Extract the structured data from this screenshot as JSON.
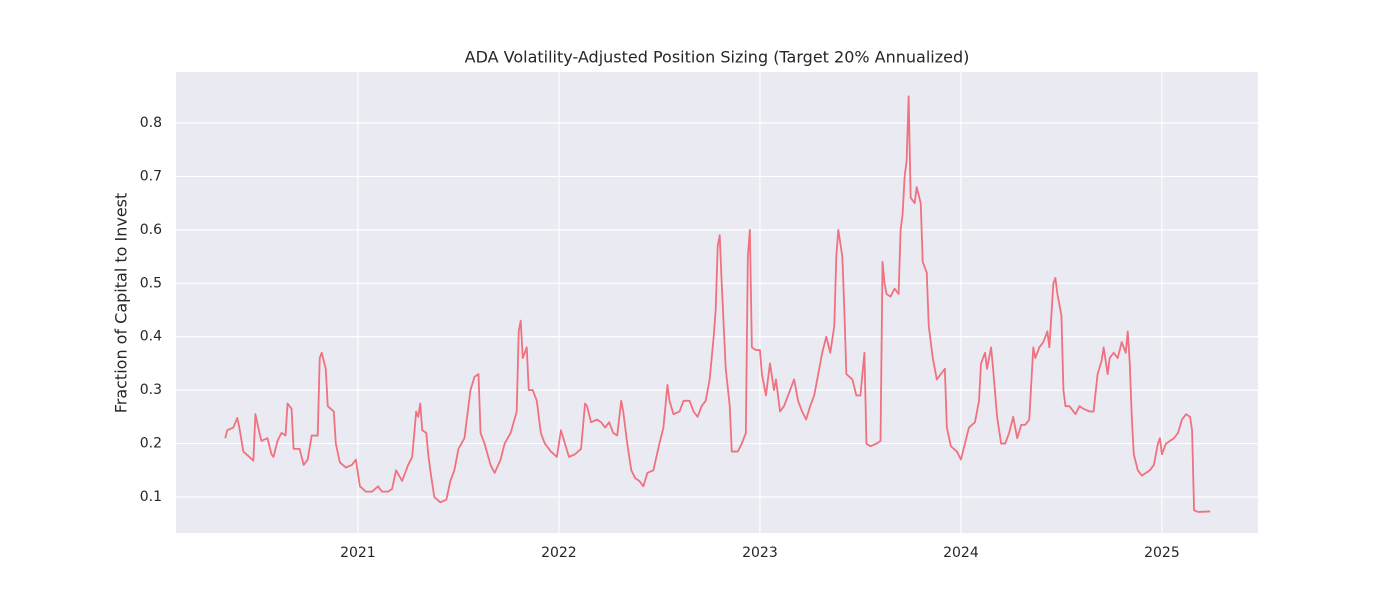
{
  "chart_data": {
    "type": "line",
    "title": "ADA Volatility-Adjusted Position Sizing (Target 20% Annualized)",
    "ylabel": "Fraction of Capital to Invest",
    "x": [
      2020.34,
      2020.35,
      2020.38,
      2020.4,
      2020.41,
      2020.43,
      2020.46,
      2020.48,
      2020.49,
      2020.51,
      2020.52,
      2020.55,
      2020.57,
      2020.58,
      2020.6,
      2020.62,
      2020.64,
      2020.65,
      2020.67,
      2020.68,
      2020.71,
      2020.73,
      2020.75,
      2020.77,
      2020.8,
      2020.81,
      2020.82,
      2020.84,
      2020.85,
      2020.88,
      2020.89,
      2020.91,
      2020.94,
      2020.97,
      2020.99,
      2021.01,
      2021.04,
      2021.07,
      2021.1,
      2021.12,
      2021.15,
      2021.17,
      2021.19,
      2021.22,
      2021.25,
      2021.27,
      2021.29,
      2021.3,
      2021.31,
      2021.32,
      2021.34,
      2021.35,
      2021.36,
      2021.38,
      2021.41,
      2021.44,
      2021.46,
      2021.48,
      2021.5,
      2021.53,
      2021.56,
      2021.58,
      2021.6,
      2021.61,
      2021.63,
      2021.66,
      2021.68,
      2021.71,
      2021.73,
      2021.76,
      2021.79,
      2021.8,
      2021.81,
      2021.82,
      2021.84,
      2021.85,
      2021.87,
      2021.89,
      2021.91,
      2021.93,
      2021.96,
      2021.99,
      2022.01,
      2022.03,
      2022.05,
      2022.08,
      2022.11,
      2022.13,
      2022.14,
      2022.16,
      2022.19,
      2022.21,
      2022.23,
      2022.25,
      2022.27,
      2022.29,
      2022.31,
      2022.32,
      2022.34,
      2022.36,
      2022.38,
      2022.4,
      2022.42,
      2022.44,
      2022.47,
      2022.5,
      2022.52,
      2022.54,
      2022.55,
      2022.57,
      2022.6,
      2022.62,
      2022.65,
      2022.67,
      2022.69,
      2022.71,
      2022.73,
      2022.75,
      2022.77,
      2022.78,
      2022.79,
      2022.8,
      2022.81,
      2022.83,
      2022.85,
      2022.86,
      2022.89,
      2022.91,
      2022.93,
      2022.94,
      2022.95,
      2022.96,
      2022.98,
      2023.0,
      2023.01,
      2023.03,
      2023.05,
      2023.07,
      2023.08,
      2023.1,
      2023.12,
      2023.15,
      2023.17,
      2023.19,
      2023.21,
      2023.23,
      2023.25,
      2023.27,
      2023.29,
      2023.31,
      2023.33,
      2023.35,
      2023.37,
      2023.38,
      2023.39,
      2023.41,
      2023.42,
      2023.43,
      2023.46,
      2023.48,
      2023.5,
      2023.52,
      2023.53,
      2023.55,
      2023.58,
      2023.6,
      2023.61,
      2023.62,
      2023.63,
      2023.65,
      2023.67,
      2023.69,
      2023.7,
      2023.71,
      2023.72,
      2023.73,
      2023.74,
      2023.75,
      2023.77,
      2023.78,
      2023.8,
      2023.81,
      2023.83,
      2023.84,
      2023.86,
      2023.88,
      2023.9,
      2023.92,
      2023.93,
      2023.95,
      2023.98,
      2024.0,
      2024.02,
      2024.04,
      2024.07,
      2024.09,
      2024.1,
      2024.12,
      2024.13,
      2024.15,
      2024.16,
      2024.18,
      2024.2,
      2024.22,
      2024.24,
      2024.26,
      2024.28,
      2024.3,
      2024.32,
      2024.34,
      2024.36,
      2024.37,
      2024.39,
      2024.41,
      2024.43,
      2024.44,
      2024.46,
      2024.47,
      2024.48,
      2024.5,
      2024.51,
      2024.52,
      2024.54,
      2024.57,
      2024.59,
      2024.61,
      2024.64,
      2024.66,
      2024.68,
      2024.7,
      2024.71,
      2024.73,
      2024.74,
      2024.76,
      2024.78,
      2024.8,
      2024.82,
      2024.83,
      2024.84,
      2024.85,
      2024.86,
      2024.88,
      2024.9,
      2024.92,
      2024.94,
      2024.96,
      2024.98,
      2024.99,
      2025.0,
      2025.02,
      2025.04,
      2025.06,
      2025.08,
      2025.1,
      2025.12,
      2025.14,
      2025.15,
      2025.16,
      2025.18,
      2025.24
    ],
    "values": [
      0.21,
      0.225,
      0.23,
      0.248,
      0.23,
      0.185,
      0.175,
      0.168,
      0.255,
      0.22,
      0.205,
      0.21,
      0.18,
      0.175,
      0.205,
      0.22,
      0.215,
      0.275,
      0.265,
      0.19,
      0.19,
      0.16,
      0.17,
      0.215,
      0.215,
      0.36,
      0.37,
      0.34,
      0.27,
      0.26,
      0.2,
      0.165,
      0.155,
      0.16,
      0.17,
      0.12,
      0.11,
      0.11,
      0.12,
      0.11,
      0.11,
      0.115,
      0.15,
      0.13,
      0.16,
      0.175,
      0.26,
      0.25,
      0.275,
      0.225,
      0.22,
      0.18,
      0.15,
      0.1,
      0.09,
      0.095,
      0.13,
      0.15,
      0.19,
      0.21,
      0.3,
      0.325,
      0.33,
      0.22,
      0.2,
      0.16,
      0.145,
      0.17,
      0.2,
      0.22,
      0.26,
      0.41,
      0.43,
      0.36,
      0.38,
      0.3,
      0.3,
      0.28,
      0.22,
      0.2,
      0.185,
      0.175,
      0.225,
      0.2,
      0.175,
      0.18,
      0.19,
      0.275,
      0.27,
      0.24,
      0.245,
      0.24,
      0.23,
      0.24,
      0.22,
      0.215,
      0.28,
      0.26,
      0.2,
      0.15,
      0.135,
      0.13,
      0.12,
      0.145,
      0.15,
      0.2,
      0.23,
      0.31,
      0.28,
      0.255,
      0.26,
      0.28,
      0.28,
      0.26,
      0.25,
      0.27,
      0.28,
      0.32,
      0.4,
      0.45,
      0.57,
      0.59,
      0.5,
      0.34,
      0.27,
      0.185,
      0.185,
      0.2,
      0.22,
      0.55,
      0.6,
      0.38,
      0.375,
      0.375,
      0.33,
      0.29,
      0.35,
      0.3,
      0.32,
      0.26,
      0.27,
      0.3,
      0.32,
      0.28,
      0.26,
      0.245,
      0.27,
      0.29,
      0.33,
      0.37,
      0.4,
      0.37,
      0.42,
      0.55,
      0.6,
      0.55,
      0.45,
      0.33,
      0.32,
      0.29,
      0.29,
      0.37,
      0.2,
      0.195,
      0.2,
      0.205,
      0.54,
      0.5,
      0.48,
      0.475,
      0.49,
      0.48,
      0.6,
      0.63,
      0.7,
      0.73,
      0.85,
      0.66,
      0.65,
      0.68,
      0.65,
      0.54,
      0.52,
      0.42,
      0.36,
      0.32,
      0.33,
      0.34,
      0.23,
      0.195,
      0.185,
      0.17,
      0.2,
      0.23,
      0.24,
      0.28,
      0.35,
      0.37,
      0.34,
      0.38,
      0.34,
      0.25,
      0.2,
      0.2,
      0.22,
      0.25,
      0.21,
      0.235,
      0.235,
      0.245,
      0.38,
      0.36,
      0.38,
      0.39,
      0.41,
      0.38,
      0.5,
      0.51,
      0.48,
      0.44,
      0.3,
      0.27,
      0.27,
      0.255,
      0.27,
      0.265,
      0.26,
      0.26,
      0.33,
      0.355,
      0.38,
      0.33,
      0.36,
      0.37,
      0.36,
      0.39,
      0.37,
      0.41,
      0.35,
      0.25,
      0.18,
      0.15,
      0.14,
      0.145,
      0.15,
      0.16,
      0.2,
      0.21,
      0.18,
      0.2,
      0.205,
      0.21,
      0.22,
      0.245,
      0.255,
      0.25,
      0.225,
      0.075,
      0.072,
      0.073
    ],
    "color": "#f0717f",
    "xlim": [
      2020.095,
      2025.478
    ],
    "ylim": [
      0.0326,
      0.8955
    ],
    "xticks": [
      2021,
      2022,
      2023,
      2024,
      2025
    ],
    "yticks": [
      0.1,
      0.2,
      0.3,
      0.4,
      0.5,
      0.6,
      0.7,
      0.8
    ],
    "grid": true
  }
}
